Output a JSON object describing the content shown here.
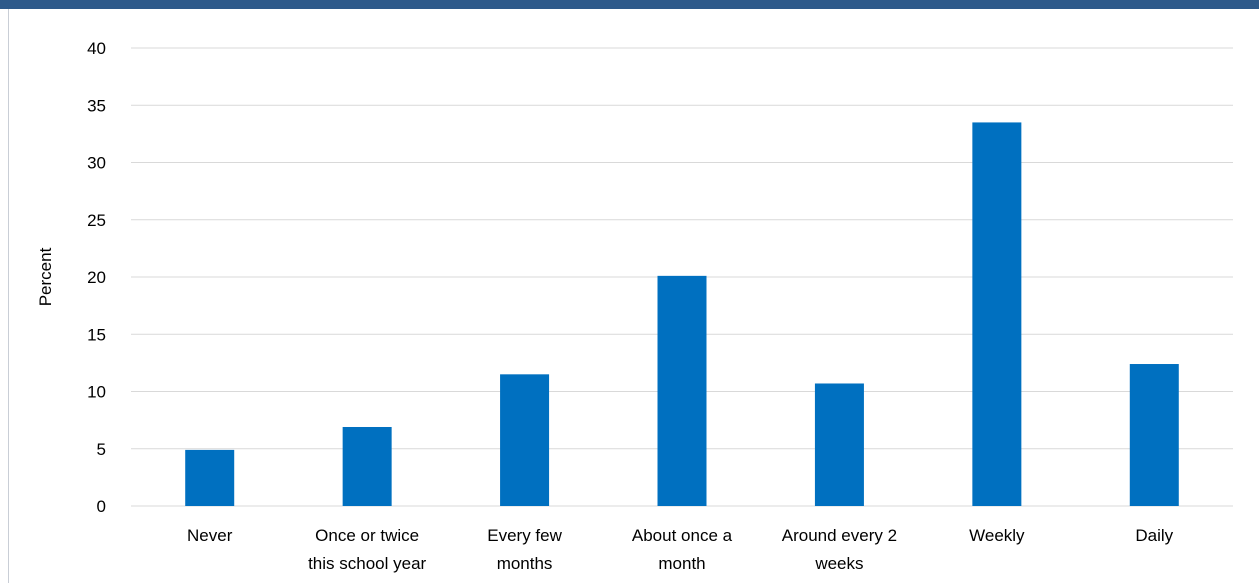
{
  "colors": {
    "top_bar": "#2e5a8a",
    "bar": "#0070c0",
    "grid": "#d9d9d9"
  },
  "chart_data": {
    "type": "bar",
    "title": "",
    "xlabel": "",
    "ylabel": "Percent",
    "ylim": [
      0,
      40
    ],
    "yticks": [
      0,
      5,
      10,
      15,
      20,
      25,
      30,
      35,
      40
    ],
    "grid": true,
    "legend": "none",
    "categories": [
      [
        "Never"
      ],
      [
        "Once or twice",
        "this school year"
      ],
      [
        "Every few",
        "months"
      ],
      [
        "About once a",
        "month"
      ],
      [
        "Around every 2",
        "weeks"
      ],
      [
        "Weekly"
      ],
      [
        "Daily"
      ]
    ],
    "values": [
      4.9,
      6.9,
      11.5,
      20.1,
      10.7,
      33.5,
      12.4
    ]
  }
}
